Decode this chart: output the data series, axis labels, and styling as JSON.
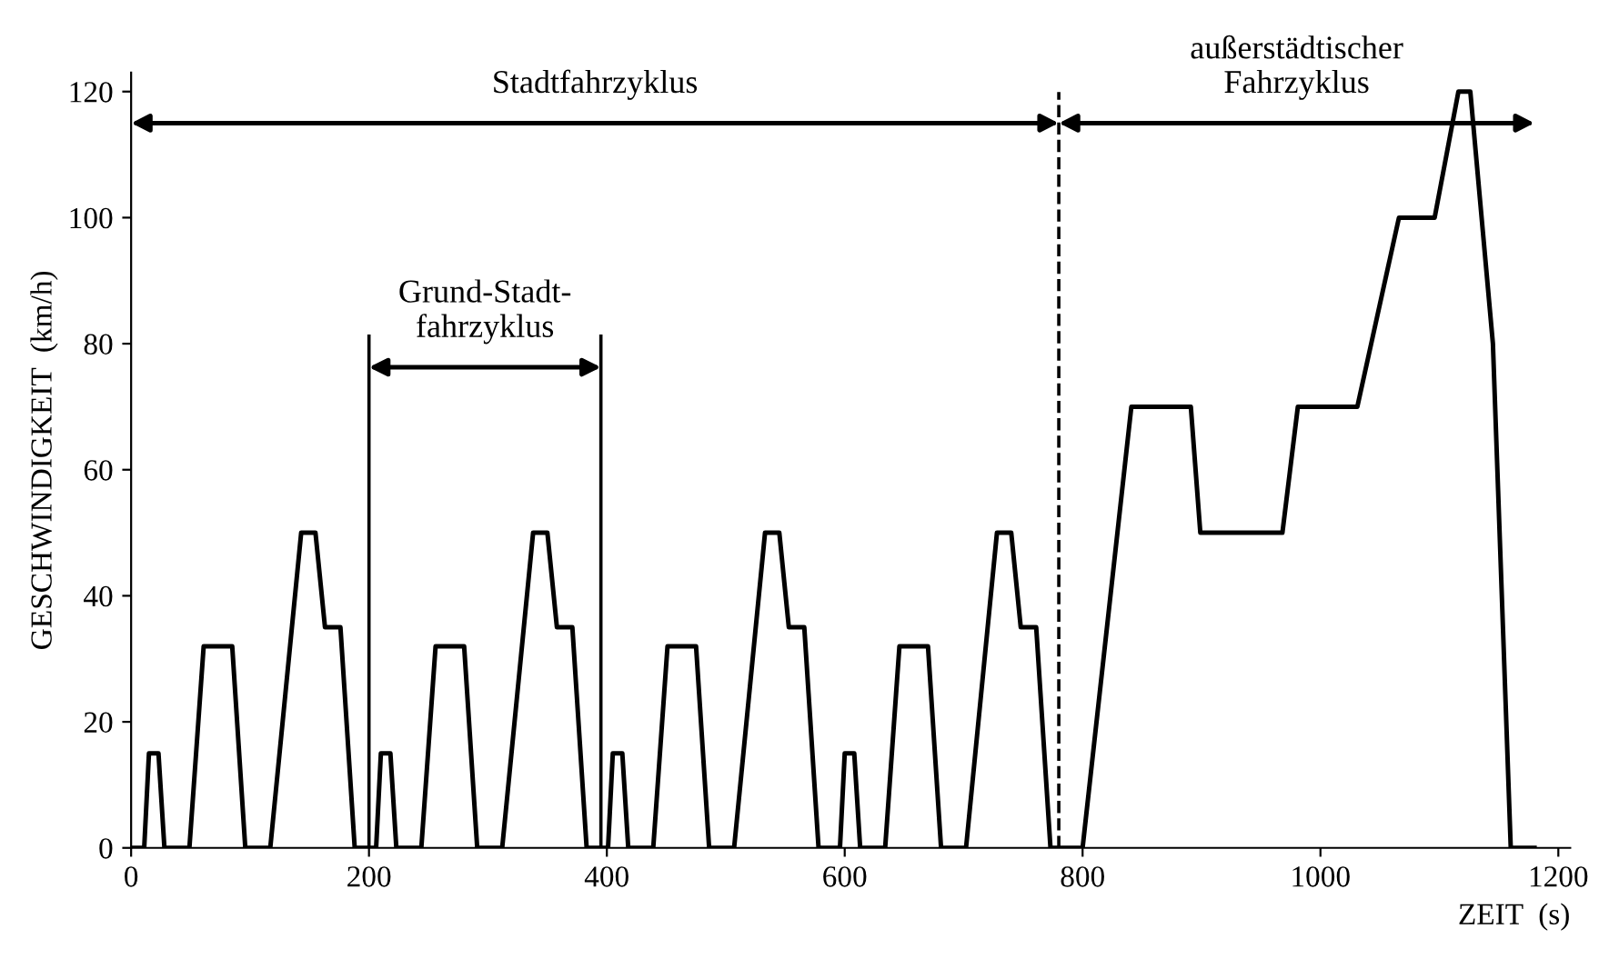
{
  "chart_data": {
    "type": "line",
    "xlabel": "ZEIT  (s)",
    "ylabel": "GESCHWINDIGKEIT  (km/h)",
    "x": [
      0,
      11,
      15,
      23,
      28,
      49,
      61,
      85,
      96,
      117,
      143,
      155,
      163,
      176,
      188,
      195,
      206,
      210,
      218,
      223,
      244,
      256,
      280,
      291,
      312,
      338,
      350,
      358,
      371,
      383,
      390,
      401,
      405,
      413,
      418,
      439,
      451,
      475,
      486,
      507,
      533,
      545,
      553,
      566,
      578,
      585,
      596,
      600,
      608,
      613,
      634,
      646,
      670,
      681,
      702,
      728,
      740,
      748,
      761,
      773,
      780,
      800,
      841,
      891,
      899,
      968,
      981,
      1031,
      1066,
      1096,
      1116,
      1126,
      1145,
      1160,
      1180
    ],
    "series": [
      {
        "color": "#000000",
        "values": [
          0,
          0,
          15,
          15,
          0,
          0,
          32,
          32,
          0,
          0,
          50,
          50,
          35,
          35,
          0,
          0,
          0,
          15,
          15,
          0,
          0,
          32,
          32,
          0,
          0,
          50,
          50,
          35,
          35,
          0,
          0,
          0,
          15,
          15,
          0,
          0,
          32,
          32,
          0,
          0,
          50,
          50,
          35,
          35,
          0,
          0,
          0,
          15,
          15,
          0,
          0,
          32,
          32,
          0,
          0,
          50,
          50,
          35,
          35,
          0,
          0,
          0,
          70,
          70,
          50,
          50,
          70,
          70,
          100,
          100,
          120,
          120,
          80,
          0,
          0
        ]
      }
    ],
    "xlim": [
      0,
      1210
    ],
    "ylim": [
      0,
      123
    ],
    "xticks": [
      0,
      200,
      400,
      600,
      800,
      1000,
      1200
    ],
    "yticks": [
      0,
      20,
      40,
      60,
      80,
      100,
      120
    ],
    "grid": false,
    "legend": false,
    "marker": "none",
    "line_style": "solid",
    "ref_lines": [
      {
        "axis": "x",
        "value": 200,
        "color": "#000000",
        "line_style": "solid"
      },
      {
        "axis": "x",
        "value": 395,
        "color": "#000000",
        "line_style": "solid"
      },
      {
        "axis": "x",
        "value": 780,
        "color": "#000000",
        "line_style": "dashed"
      }
    ],
    "annotations": [
      "Stadtfahrzyklus",
      "Grund-Stadt-\nfahrzyklus",
      "außerstädtischer\nFahrzyklus"
    ]
  }
}
